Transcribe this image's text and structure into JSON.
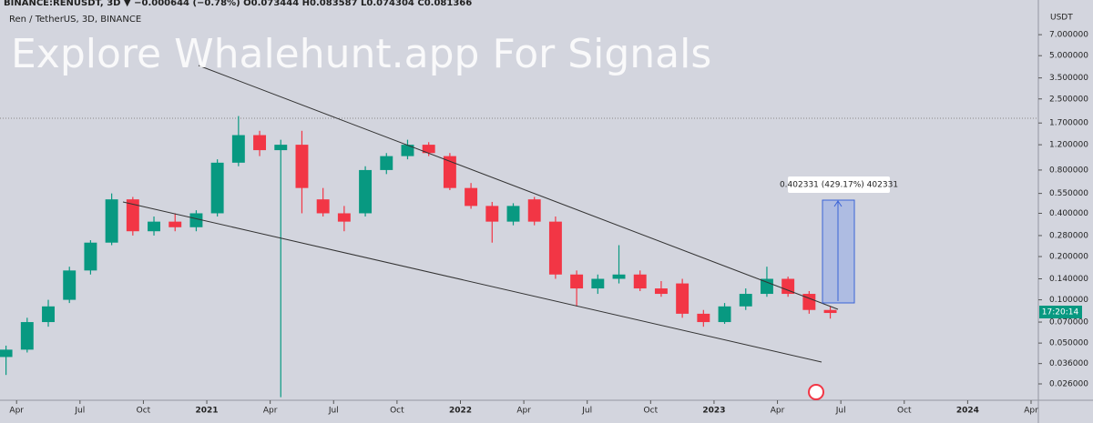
{
  "chart_data": {
    "type": "candlestick",
    "header": "BINANCE:RENUSDT, 3D ▼ −0.000644 (−0.78%) O0.073444 H0.083587 L0.074304 C0.081366",
    "title": "Ren / TetherUS, 3D, BINANCE",
    "watermark": "Explore Whalehunt.app For Signals",
    "y_axis_label": "USDT",
    "measure_label": "0.402331 (429.17%) 402331",
    "countdown": "17:20:14",
    "log_scale": true,
    "up_color": "#089981",
    "down_color": "#f23645",
    "x": [
      "2020-03",
      "2020-04",
      "2020-05",
      "2020-06",
      "2020-07",
      "2020-08",
      "2020-09",
      "2020-10",
      "2020-11",
      "2020-12",
      "2021-01",
      "2021-02",
      "2021-03",
      "2021-04",
      "2021-05",
      "2021-06",
      "2021-07",
      "2021-08",
      "2021-09",
      "2021-10",
      "2021-11",
      "2021-12",
      "2022-01",
      "2022-02",
      "2022-03",
      "2022-04",
      "2022-05",
      "2022-06",
      "2022-07",
      "2022-08",
      "2022-09",
      "2022-10",
      "2022-11",
      "2022-12",
      "2023-01",
      "2023-02",
      "2023-03",
      "2023-04",
      "2023-05",
      "2023-06"
    ],
    "open": [
      0.04,
      0.045,
      0.07,
      0.1,
      0.16,
      0.25,
      0.5,
      0.3,
      0.35,
      0.32,
      0.4,
      0.9,
      1.4,
      1.1,
      1.2,
      0.5,
      0.4,
      0.4,
      0.8,
      1.0,
      1.2,
      1.0,
      0.6,
      0.45,
      0.35,
      0.5,
      0.35,
      0.15,
      0.12,
      0.14,
      0.15,
      0.12,
      0.13,
      0.08,
      0.07,
      0.09,
      0.11,
      0.14,
      0.11,
      0.085
    ],
    "high": [
      0.048,
      0.075,
      0.1,
      0.17,
      0.26,
      0.55,
      0.52,
      0.38,
      0.4,
      0.42,
      0.95,
      1.9,
      1.5,
      1.3,
      1.5,
      0.6,
      0.45,
      0.85,
      1.05,
      1.3,
      1.25,
      1.05,
      0.65,
      0.48,
      0.47,
      0.52,
      0.38,
      0.16,
      0.15,
      0.24,
      0.16,
      0.135,
      0.14,
      0.085,
      0.095,
      0.12,
      0.17,
      0.145,
      0.115,
      0.09
    ],
    "low": [
      0.03,
      0.043,
      0.065,
      0.095,
      0.15,
      0.24,
      0.28,
      0.28,
      0.3,
      0.3,
      0.38,
      0.85,
      1.0,
      0.021,
      0.4,
      0.38,
      0.3,
      0.38,
      0.75,
      0.95,
      1.0,
      0.58,
      0.43,
      0.25,
      0.33,
      0.33,
      0.14,
      0.09,
      0.11,
      0.13,
      0.115,
      0.105,
      0.075,
      0.065,
      0.068,
      0.085,
      0.105,
      0.105,
      0.08,
      0.074
    ],
    "close": [
      0.045,
      0.07,
      0.09,
      0.16,
      0.25,
      0.5,
      0.3,
      0.35,
      0.32,
      0.4,
      0.9,
      1.4,
      1.1,
      1.2,
      0.6,
      0.4,
      0.35,
      0.8,
      1.0,
      1.2,
      1.05,
      0.6,
      0.45,
      0.35,
      0.45,
      0.35,
      0.15,
      0.12,
      0.14,
      0.15,
      0.12,
      0.11,
      0.08,
      0.07,
      0.09,
      0.11,
      0.14,
      0.11,
      0.085,
      0.081
    ],
    "ylim": [
      0.02,
      12.2
    ],
    "yticks": [
      {
        "value": 7,
        "label": "7.000000"
      },
      {
        "value": 5,
        "label": "5.000000"
      },
      {
        "value": 3.5,
        "label": "3.500000"
      },
      {
        "value": 2.5,
        "label": "2.500000"
      },
      {
        "value": 1.7,
        "label": "1.700000"
      },
      {
        "value": 1.2,
        "label": "1.200000"
      },
      {
        "value": 0.8,
        "label": "0.800000"
      },
      {
        "value": 0.55,
        "label": "0.550000"
      },
      {
        "value": 0.4,
        "label": "0.400000"
      },
      {
        "value": 0.28,
        "label": "0.280000"
      },
      {
        "value": 0.2,
        "label": "0.200000"
      },
      {
        "value": 0.14,
        "label": "0.140000"
      },
      {
        "value": 0.1,
        "label": "0.100000"
      },
      {
        "value": 0.07,
        "label": "0.070000"
      },
      {
        "value": 0.05,
        "label": "0.050000"
      },
      {
        "value": 0.036,
        "label": "0.036000"
      },
      {
        "value": 0.026,
        "label": "0.026000"
      }
    ],
    "xlim": [
      "2020-03",
      "2024-04"
    ],
    "xticks": [
      {
        "value": "2020-04",
        "label": "Apr"
      },
      {
        "value": "2020-07",
        "label": "Jul"
      },
      {
        "value": "2020-10",
        "label": "Oct"
      },
      {
        "value": "2021-01",
        "label": "2021"
      },
      {
        "value": "2021-04",
        "label": "Apr"
      },
      {
        "value": "2021-07",
        "label": "Jul"
      },
      {
        "value": "2021-10",
        "label": "Oct"
      },
      {
        "value": "2022-01",
        "label": "2022"
      },
      {
        "value": "2022-04",
        "label": "Apr"
      },
      {
        "value": "2022-07",
        "label": "Jul"
      },
      {
        "value": "2022-10",
        "label": "Oct"
      },
      {
        "value": "2023-01",
        "label": "2023"
      },
      {
        "value": "2023-04",
        "label": "Apr"
      },
      {
        "value": "2023-07",
        "label": "Jul"
      },
      {
        "value": "2023-10",
        "label": "Oct"
      },
      {
        "value": "2024-01",
        "label": "2024"
      },
      {
        "value": "2024-04",
        "label": "Apr"
      }
    ]
  }
}
